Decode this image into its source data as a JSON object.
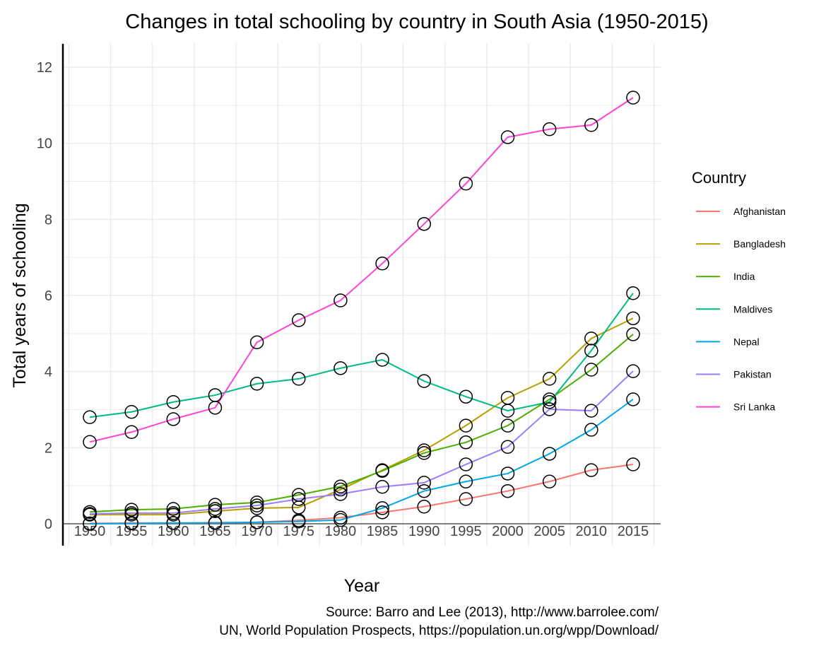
{
  "chart_data": {
    "type": "line",
    "title": "Changes in total schooling by country in South Asia (1950-2015)",
    "xlabel": "Year",
    "ylabel": "Total years of schooling",
    "caption": [
      "Source: Barro and Lee (2013), http://www.barrolee.com/",
      "UN, World Population Prospects, https://population.un.org/wpp/Download/"
    ],
    "legend_title": "Country",
    "legend_position": "right",
    "grid": true,
    "ylim": [
      0,
      12.5
    ],
    "yticks": [
      0,
      2,
      4,
      6,
      8,
      10,
      12
    ],
    "x": [
      1950,
      1955,
      1960,
      1965,
      1970,
      1975,
      1980,
      1985,
      1990,
      1995,
      2000,
      2005,
      2010,
      2015
    ],
    "series": [
      {
        "name": "Afghanistan",
        "color": "#F8766D",
        "values": [
          0.01,
          0.02,
          0.02,
          0.03,
          0.04,
          0.09,
          0.16,
          0.3,
          0.45,
          0.65,
          0.86,
          1.11,
          1.41,
          1.56
        ]
      },
      {
        "name": "Bangladesh",
        "color": "#B79F00",
        "values": [
          0.24,
          0.24,
          0.24,
          0.33,
          0.41,
          0.43,
          0.9,
          1.41,
          1.93,
          2.58,
          3.31,
          3.81,
          4.87,
          5.4
        ]
      },
      {
        "name": "India",
        "color": "#4DAF00",
        "values": [
          0.31,
          0.37,
          0.39,
          0.5,
          0.56,
          0.76,
          0.98,
          1.39,
          1.86,
          2.14,
          2.58,
          3.27,
          4.05,
          4.98
        ]
      },
      {
        "name": "Maldives",
        "color": "#00BA86",
        "values": [
          2.8,
          2.94,
          3.2,
          3.38,
          3.68,
          3.81,
          4.09,
          4.31,
          3.75,
          3.34,
          2.97,
          3.2,
          4.55,
          6.06
        ]
      },
      {
        "name": "Nepal",
        "color": "#00A9E6",
        "values": [
          0.0,
          0.01,
          0.02,
          0.02,
          0.04,
          0.06,
          0.1,
          0.41,
          0.86,
          1.11,
          1.32,
          1.84,
          2.47,
          3.27
        ]
      },
      {
        "name": "Pakistan",
        "color": "#9D7DFF",
        "values": [
          0.26,
          0.28,
          0.28,
          0.39,
          0.48,
          0.65,
          0.78,
          0.97,
          1.08,
          1.56,
          2.02,
          3.01,
          2.97,
          4.01
        ]
      },
      {
        "name": "Sri Lanka",
        "color": "#FF44D5",
        "values": [
          2.15,
          2.41,
          2.75,
          3.05,
          4.77,
          5.35,
          5.87,
          6.84,
          7.88,
          8.94,
          10.16,
          10.37,
          10.48,
          11.2
        ]
      }
    ]
  }
}
